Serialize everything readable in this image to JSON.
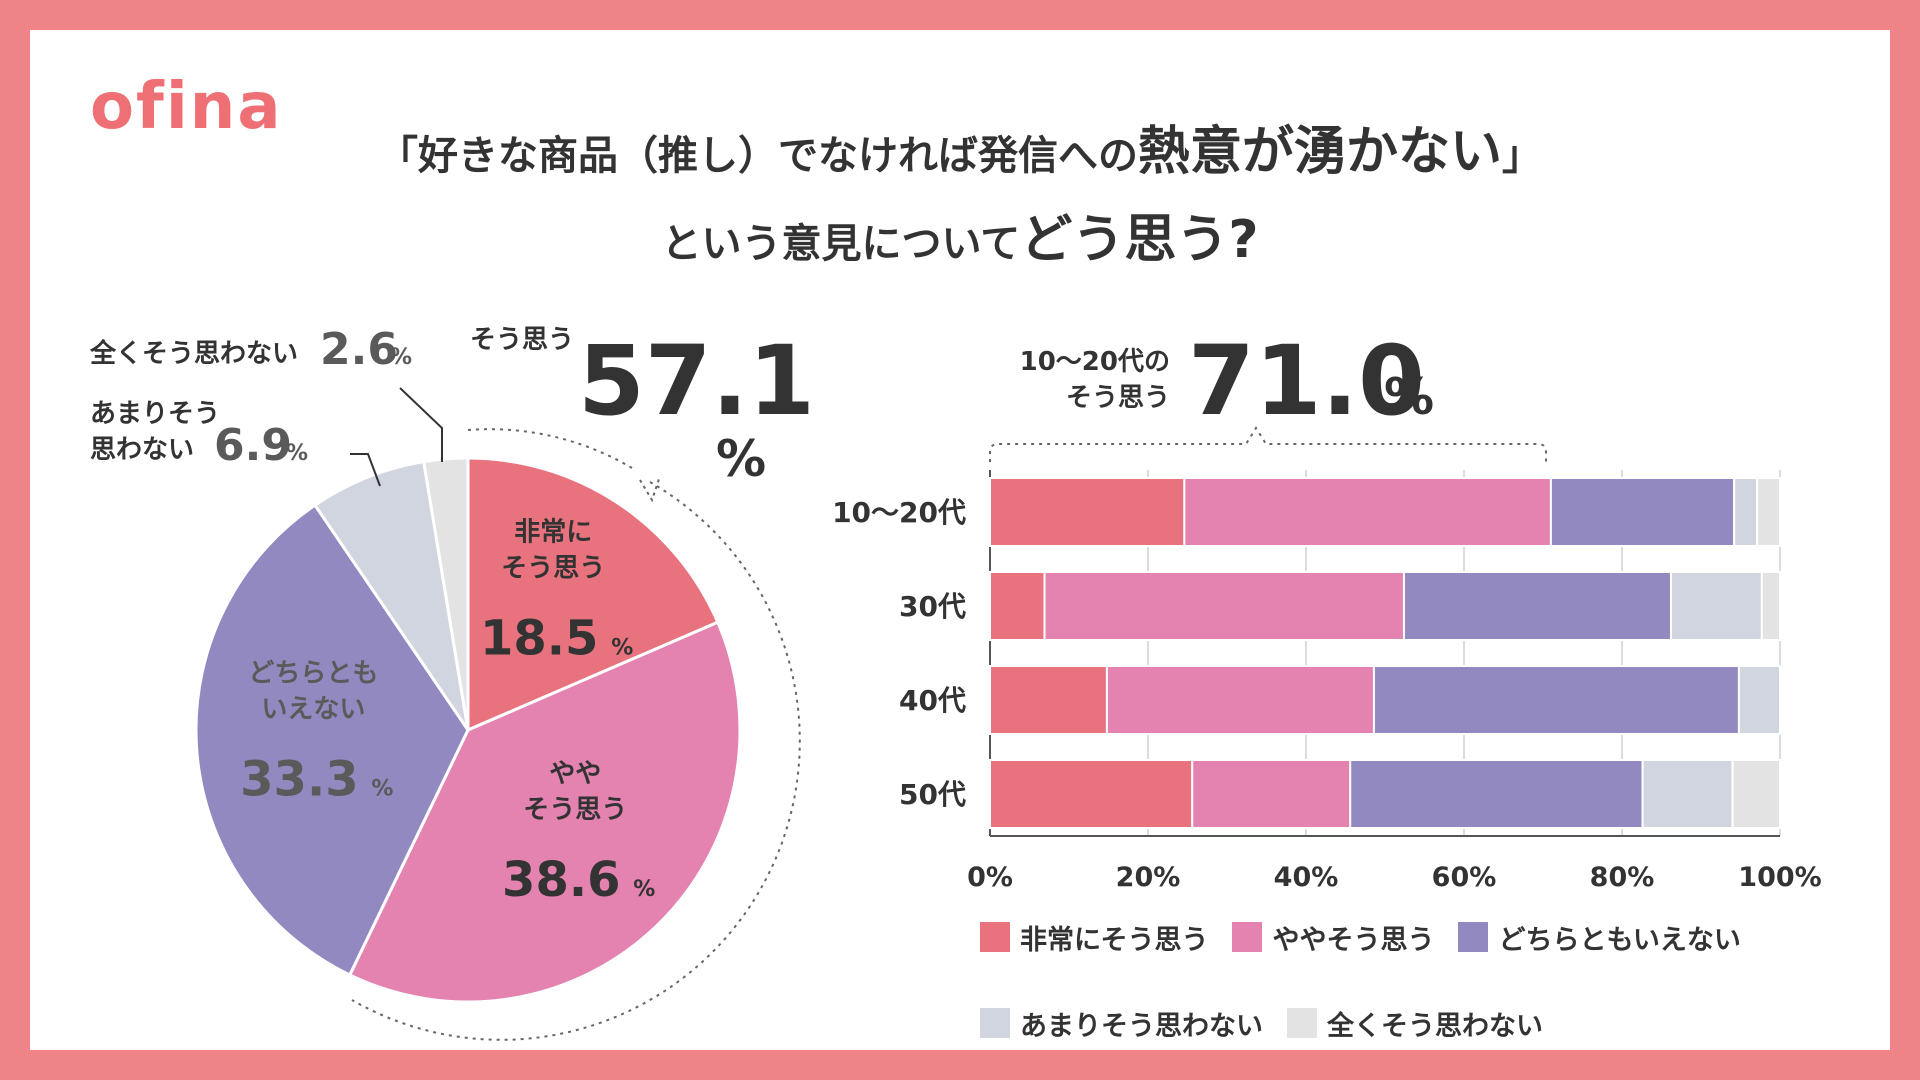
{
  "logo": "ofina",
  "title": {
    "line1_a": "「好きな商品（推し）でなければ発信への",
    "line1_b": "熱意が湧かない",
    "line1_c": "」",
    "line2_a": "という意見について",
    "line2_b": "どう思う?"
  },
  "colors": {
    "background": "#ee8488",
    "very_agree": "#e8737f",
    "somewhat_agree": "#e482b0",
    "neutral": "#9189bf",
    "not_really": "#d1d5e0",
    "not_at_all": "#e3e3e3",
    "logo": "#ee6f74"
  },
  "pie_callouts": {
    "agree_label": "そう思う",
    "agree_value": "57.1",
    "agree_unit": "%",
    "not_at_all_label": "全くそう思わない",
    "not_at_all_value": "2.6",
    "not_really_label_1": "あまりそう",
    "not_really_label_2": "思わない",
    "not_really_value": "6.9",
    "percent": "%"
  },
  "bar_callout": {
    "label_1": "10～20代の",
    "label_2": "そう思う",
    "value": "71.0",
    "unit": "%"
  },
  "legend": [
    {
      "label": "非常にそう思う",
      "color": "#e8737f"
    },
    {
      "label": "ややそう思う",
      "color": "#e482b0"
    },
    {
      "label": "どちらともいえない",
      "color": "#9189bf"
    },
    {
      "label": "あまりそう思わない",
      "color": "#d1d5e0"
    },
    {
      "label": "全くそう思わない",
      "color": "#e3e3e3"
    }
  ],
  "chart_data": [
    {
      "type": "pie",
      "categories": [
        "非常にそう思う",
        "ややそう思う",
        "どちらともいえない",
        "あまりそう思わない",
        "全くそう思わない"
      ],
      "values": [
        18.5,
        38.6,
        33.3,
        6.9,
        2.6
      ],
      "slice_labels": [
        {
          "lines": [
            "非常に",
            "そう思う"
          ],
          "value": "18.5",
          "unit": "%"
        },
        {
          "lines": [
            "やや",
            "そう思う"
          ],
          "value": "38.6",
          "unit": "%"
        },
        {
          "lines": [
            "どちらとも",
            "いえない"
          ],
          "value": "33.3",
          "unit": "%"
        },
        {
          "lines": [],
          "value": "",
          "unit": ""
        },
        {
          "lines": [],
          "value": "",
          "unit": ""
        }
      ],
      "colors": [
        "#e8737f",
        "#e482b0",
        "#9189bf",
        "#d1d5e0",
        "#e3e3e3"
      ]
    },
    {
      "type": "bar",
      "orientation": "horizontal",
      "stacked": true,
      "categories": [
        "10～20代",
        "30代",
        "40代",
        "50代"
      ],
      "series": [
        {
          "name": "非常にそう思う",
          "values": [
            24.6,
            6.9,
            14.8,
            25.6
          ],
          "color": "#e8737f"
        },
        {
          "name": "ややそう思う",
          "values": [
            46.4,
            45.5,
            33.8,
            20.0
          ],
          "color": "#e482b0"
        },
        {
          "name": "どちらともいえない",
          "values": [
            23.2,
            33.8,
            46.2,
            37.0
          ],
          "color": "#9189bf"
        },
        {
          "name": "あまりそう思わない",
          "values": [
            2.9,
            11.5,
            5.2,
            11.4
          ],
          "color": "#d1d5e0"
        },
        {
          "name": "全くそう思わない",
          "values": [
            2.9,
            2.3,
            0.0,
            6.0
          ],
          "color": "#e3e3e3"
        }
      ],
      "xlim": [
        0,
        100
      ],
      "x_ticks": [
        "0%",
        "20%",
        "40%",
        "60%",
        "80%",
        "100%"
      ],
      "grid": true,
      "legend_position": "bottom"
    }
  ]
}
